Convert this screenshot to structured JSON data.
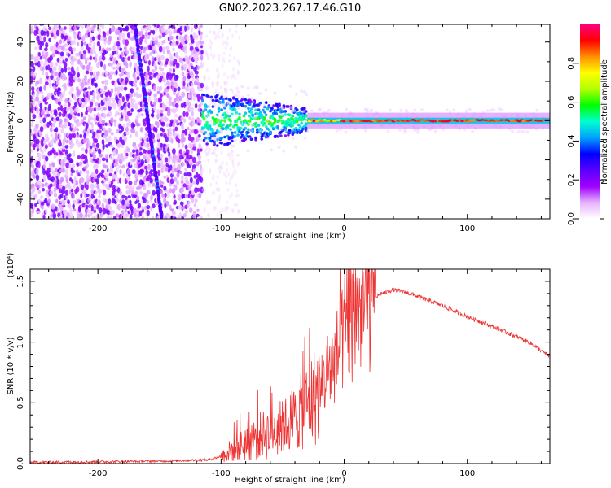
{
  "title": "GN02.2023.267.17.46.G10",
  "chart_data": [
    {
      "type": "heatmap",
      "xlabel": "Height of straight line (km)",
      "ylabel": "Frequency (Hz)",
      "xlim": [
        -255,
        167
      ],
      "ylim": [
        -50,
        49
      ],
      "xticks": [
        "-200",
        "-100",
        "0",
        "100"
      ],
      "xtick_values": [
        -200,
        -100,
        0,
        100
      ],
      "yticks": [
        "-40",
        "-20",
        "0",
        "20",
        "40"
      ],
      "ytick_values": [
        -40,
        -20,
        0,
        20,
        40
      ],
      "colorbar": {
        "label": "Normalized spectral amplitude",
        "range": [
          0,
          1
        ],
        "ticks": [
          "0.0",
          "0.2",
          "0.4",
          "0.6",
          "0.8"
        ],
        "tick_values": [
          0.0,
          0.2,
          0.4,
          0.6,
          0.8
        ],
        "colormap": [
          "#ffffff",
          "#e6b3ff",
          "#9f00ff",
          "#5a00ff",
          "#0000ff",
          "#00a0ff",
          "#00ffd0",
          "#00ff00",
          "#b0ff00",
          "#ffff00",
          "#ff9000",
          "#ff0000",
          "#ff0080"
        ]
      },
      "regions": [
        {
          "name": "noise-field",
          "x_range": [
            -255,
            -115
          ],
          "freq_range": [
            -50,
            49
          ],
          "amplitude": 0.1
        },
        {
          "name": "diagonal-streak",
          "x_start": -170,
          "freq_start": 49,
          "x_end": -148,
          "freq_end": -50,
          "amplitude": 0.15
        },
        {
          "name": "signal-onset",
          "x_range": [
            -115,
            -30
          ],
          "freq_center": 0,
          "freq_spread": [
            -14,
            14
          ],
          "amplitude": 0.3
        },
        {
          "name": "signal-steady",
          "x_range": [
            -30,
            167
          ],
          "freq_center": 0,
          "freq_spread": [
            -4,
            4
          ],
          "amplitude": 0.9
        }
      ]
    },
    {
      "type": "line",
      "xlabel": "Height of straight line (km)",
      "ylabel": "SNR (10 * v/v)",
      "y_multiplier": "(x10⁴)",
      "xlim": [
        -255,
        167
      ],
      "ylim": [
        0,
        1.6
      ],
      "xticks": [
        "-200",
        "-100",
        "0",
        "100"
      ],
      "xtick_values": [
        -200,
        -100,
        0,
        100
      ],
      "yticks": [
        "0.0",
        "0.5",
        "1.0",
        "1.5"
      ],
      "ytick_values": [
        0.0,
        0.5,
        1.0,
        1.5
      ],
      "color": "#ee3333",
      "series": [
        {
          "name": "SNR",
          "x": [
            -255,
            -200,
            -150,
            -110,
            -100,
            -90,
            -80,
            -70,
            -60,
            -50,
            -40,
            -30,
            -20,
            -10,
            0,
            10,
            20,
            30,
            40,
            50,
            75,
            100,
            125,
            150,
            167
          ],
          "y": [
            0.01,
            0.015,
            0.02,
            0.03,
            0.06,
            0.12,
            0.18,
            0.22,
            0.25,
            0.3,
            0.38,
            0.48,
            0.6,
            0.8,
            1.05,
            1.22,
            1.33,
            1.4,
            1.43,
            1.41,
            1.32,
            1.21,
            1.11,
            1.0,
            0.88
          ]
        }
      ]
    }
  ]
}
